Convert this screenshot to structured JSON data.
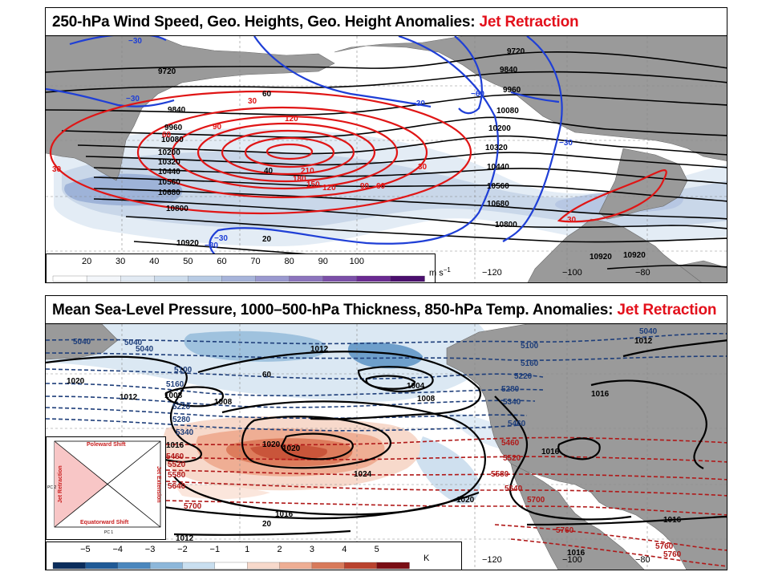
{
  "top_panel": {
    "title": "250-hPa Wind Speed, Geo. Heights, Geo. Height Anomalies: ",
    "title_highlight": "Jet Retraction",
    "colorbar": {
      "ticks": [
        "20",
        "30",
        "40",
        "50",
        "60",
        "70",
        "80",
        "90",
        "100"
      ],
      "unit": "m s",
      "unit_exp": "−1"
    },
    "longitudes": [
      "−120",
      "−100",
      "−80"
    ],
    "height_labels": [
      "9720",
      "9720",
      "9840",
      "9840",
      "9960",
      "9960",
      "10080",
      "10080",
      "10200",
      "10200",
      "10320",
      "10320",
      "10440",
      "10440",
      "10560",
      "10560",
      "10680",
      "10680",
      "10800",
      "10800",
      "10920",
      "10920",
      "10920"
    ],
    "neg_anomaly_labels": [
      "−30",
      "−30",
      "−30",
      "−60",
      "−30",
      "−30",
      "−30"
    ],
    "pos_anomaly_labels": [
      "30",
      "30",
      "60",
      "90",
      "120",
      "150",
      "180",
      "210",
      "120",
      "90",
      "60",
      "30",
      "30"
    ],
    "wind_labels": [
      "60",
      "40",
      "20"
    ]
  },
  "bottom_panel": {
    "title": "Mean Sea-Level Pressure, 1000–500-hPa Thickness, 850-hPa Temp. Anomalies: ",
    "title_highlight": "Jet Retraction",
    "colorbar": {
      "ticks": [
        "−5",
        "−4",
        "−3",
        "−2",
        "−1",
        "1",
        "2",
        "3",
        "4",
        "5"
      ],
      "unit": "K"
    },
    "longitudes": [
      "−120",
      "−100",
      "−80"
    ],
    "mslp_labels": [
      "1020",
      "1012",
      "1008",
      "1008",
      "1008",
      "1012",
      "1004",
      "1016",
      "1016",
      "1016",
      "1016",
      "1020",
      "1020",
      "1016",
      "1016",
      "1024",
      "1012",
      "1012",
      "1020",
      "60",
      "20"
    ],
    "thickness_cold_labels": [
      "5040",
      "5040",
      "5040",
      "5100",
      "5160",
      "5220",
      "5280",
      "5340",
      "5460",
      "5100",
      "5160",
      "5220",
      "5280",
      "5340",
      "5040"
    ],
    "thickness_warm_labels": [
      "5460",
      "5520",
      "5580",
      "5640",
      "5700",
      "5460",
      "5520",
      "5580",
      "5640",
      "5700",
      "5760",
      "5760",
      "5760"
    ],
    "inset": {
      "top": "Poleward Shift",
      "bottom": "Equatorward Shift",
      "left": "Jet Retraction",
      "right": "Jet Extension",
      "xaxis": "PC 1",
      "yaxis": "PC 2"
    }
  },
  "colors": {
    "title_highlight": "#e3101b",
    "neg_anomaly": "#1f3fd6",
    "pos_anomaly": "#e01515",
    "land": "#9a9a9a",
    "ocean": "#ffffff",
    "thickness_cold": "#1e3e7a",
    "thickness_warm": "#b01818"
  }
}
